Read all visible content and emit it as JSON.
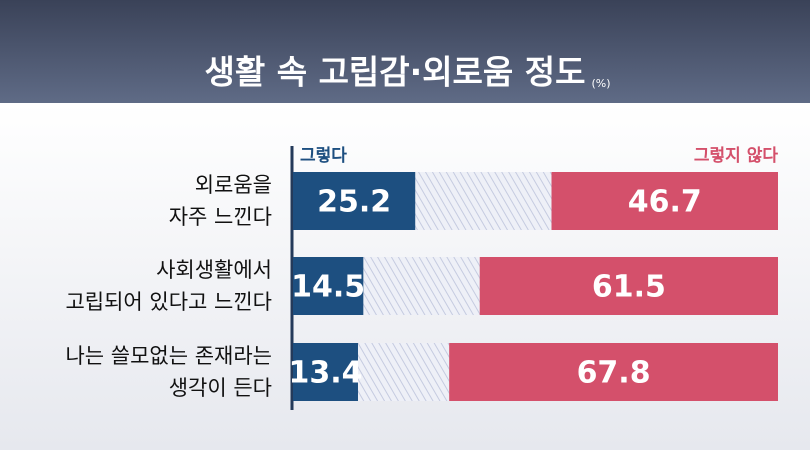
{
  "chart_data": {
    "type": "diverging-bar",
    "title": "생활 속  고립감·외로움 정도",
    "unit": "(%)",
    "categories": [
      [
        "외로움을",
        "자주 느낀다"
      ],
      [
        "사회생활에서",
        "고립되어 있다고 느낀다"
      ],
      [
        "나는 쓸모없는 존재라는",
        "생각이 든다"
      ]
    ],
    "series": [
      {
        "name": "그렇다",
        "color": "#1d4f80",
        "values": [
          25.2,
          14.5,
          13.4
        ]
      },
      {
        "name": "그렇지 않다",
        "color": "#d4506b",
        "values": [
          46.7,
          61.5,
          67.8
        ]
      }
    ],
    "xlim": [
      0,
      100
    ]
  }
}
